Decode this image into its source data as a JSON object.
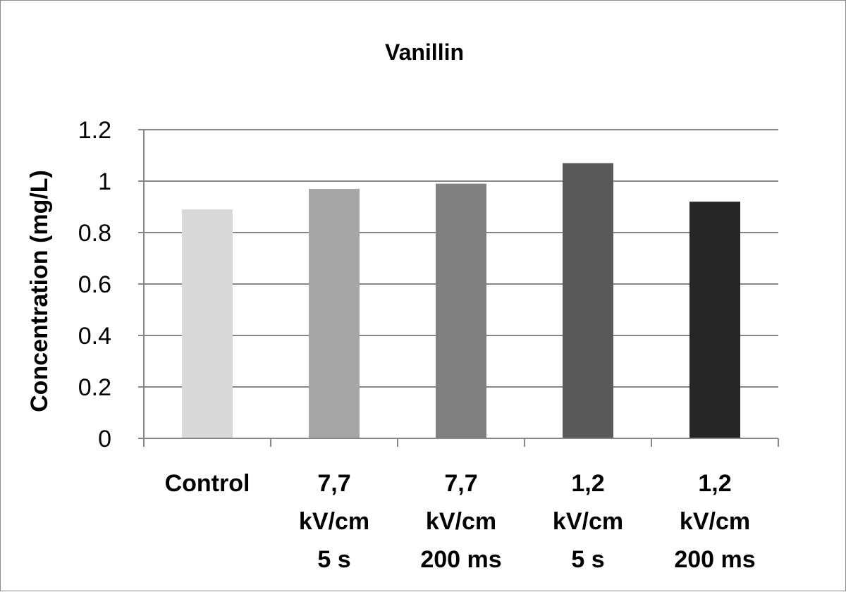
{
  "chart_data": {
    "type": "bar",
    "title": "Vanillin",
    "ylabel": "Concentration (mg/L)",
    "xlabel": "",
    "ylim": [
      0,
      1.2
    ],
    "yticks": [
      "0",
      "0.2",
      "0.4",
      "0.6",
      "0.8",
      "1",
      "1.2"
    ],
    "ytick_values": [
      0,
      0.2,
      0.4,
      0.6,
      0.8,
      1.0,
      1.2
    ],
    "grid": true,
    "legend": "none",
    "categories": [
      [
        "Control"
      ],
      [
        "7,7",
        "kV/cm",
        "5 s"
      ],
      [
        "7,7",
        "kV/cm",
        "200 ms"
      ],
      [
        "1,2",
        "kV/cm",
        "5 s"
      ],
      [
        "1,2",
        "kV/cm",
        "200 ms"
      ]
    ],
    "values": [
      0.89,
      0.97,
      0.99,
      1.07,
      0.92
    ],
    "colors": [
      "#d9d9d9",
      "#a6a6a6",
      "#808080",
      "#595959",
      "#262626"
    ]
  }
}
